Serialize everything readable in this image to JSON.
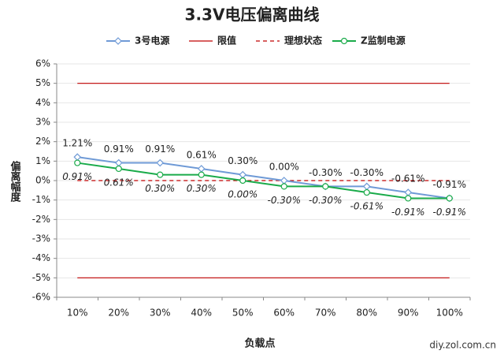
{
  "chart_data": {
    "type": "line",
    "title": "3.3V电压偏离曲线",
    "x_label": "负载点",
    "y_label": "偏离幅度",
    "source": "diy.zol.com.cn",
    "categories": [
      "10%",
      "20%",
      "30%",
      "40%",
      "50%",
      "60%",
      "70%",
      "80%",
      "90%",
      "100%"
    ],
    "series": [
      {
        "name": "3号电源",
        "color": "#6f9ad6",
        "marker": "diamond",
        "values": [
          1.21,
          0.91,
          0.91,
          0.61,
          0.3,
          0.0,
          -0.3,
          -0.3,
          -0.61,
          -0.91
        ],
        "value_labels": [
          "1.21%",
          "0.91%",
          "0.91%",
          "0.61%",
          "0.30%",
          "0.00%",
          "-0.30%",
          "-0.30%",
          "-0.61%",
          "-0.91%"
        ]
      },
      {
        "name": "Z监制电源",
        "color": "#1aab4a",
        "marker": "circle",
        "values": [
          0.91,
          0.61,
          0.3,
          0.3,
          0.0,
          -0.3,
          -0.3,
          -0.61,
          -0.91,
          -0.91
        ],
        "value_labels": [
          "0.91%",
          "0.61%",
          "0.30%",
          "0.30%",
          "0.00%",
          "-0.30%",
          "-0.30%",
          "-0.61%",
          "-0.91%",
          "-0.91%"
        ]
      }
    ],
    "limit": {
      "name": "限值",
      "color": "#c00000",
      "values": [
        5,
        -5
      ]
    },
    "ideal": {
      "name": "理想状态",
      "color": "#c00000",
      "value": 0
    },
    "ylim": [
      -6,
      6
    ],
    "yticks": [
      {
        "value": -6,
        "label": "-6%"
      },
      {
        "value": -5,
        "label": "-5%"
      },
      {
        "value": -4,
        "label": "-4%"
      },
      {
        "value": -3,
        "label": "-3%"
      },
      {
        "value": -2,
        "label": "-2%"
      },
      {
        "value": -1,
        "label": "-1%"
      },
      {
        "value": 0,
        "label": "0%"
      },
      {
        "value": 1,
        "label": "1%"
      },
      {
        "value": 2,
        "label": "2%"
      },
      {
        "value": 3,
        "label": "3%"
      },
      {
        "value": 4,
        "label": "4%"
      },
      {
        "value": 5,
        "label": "5%"
      },
      {
        "value": 6,
        "label": "6%"
      }
    ],
    "grid": true
  }
}
